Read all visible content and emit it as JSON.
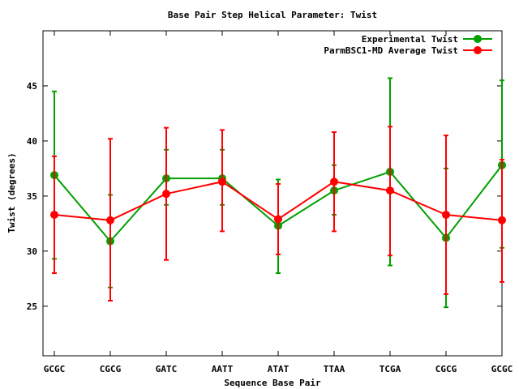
{
  "chart_data": {
    "type": "line",
    "title": "Base Pair Step Helical Parameter: Twist",
    "xlabel": "Sequence Base Pair",
    "ylabel": "Twist (degrees)",
    "categories": [
      "GCGC",
      "CGCG",
      "GATC",
      "AATT",
      "ATAT",
      "TTAA",
      "TCGA",
      "CGCG",
      "GCGC"
    ],
    "yticks": [
      25,
      30,
      35,
      40,
      45
    ],
    "ylim": [
      20.5,
      50
    ],
    "grid": false,
    "legend_position": "top-right",
    "series": [
      {
        "name": "Experimental Twist",
        "color": "#00a000",
        "values": [
          36.9,
          30.9,
          36.6,
          36.6,
          32.3,
          35.5,
          37.2,
          31.2,
          37.8
        ],
        "err_low": [
          29.3,
          26.7,
          34.2,
          34.2,
          28.0,
          33.3,
          28.7,
          24.9,
          30.3
        ],
        "err_high": [
          44.5,
          35.1,
          39.2,
          39.2,
          36.5,
          37.8,
          45.7,
          37.5,
          45.5
        ]
      },
      {
        "name": "ParmBSC1-MD Average Twist",
        "color": "#ff0000",
        "values": [
          33.3,
          32.8,
          35.2,
          36.3,
          32.9,
          36.3,
          35.5,
          33.3,
          32.8
        ],
        "err_low": [
          28.0,
          25.5,
          29.2,
          31.8,
          29.7,
          31.8,
          29.6,
          26.1,
          27.2
        ],
        "err_high": [
          38.6,
          40.2,
          41.2,
          41.0,
          36.1,
          40.8,
          41.3,
          40.5,
          38.3
        ]
      }
    ]
  }
}
